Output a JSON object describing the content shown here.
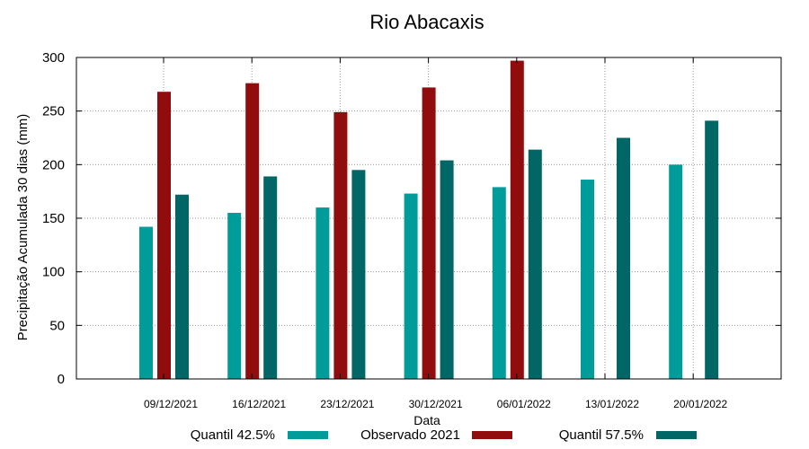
{
  "chart_data": {
    "type": "bar",
    "title": "Rio Abacaxis",
    "xlabel": "Data",
    "ylabel": "Precipitação Acumulada 30 dias (mm)",
    "ylim": [
      0,
      300
    ],
    "yticks": [
      0,
      50,
      100,
      150,
      200,
      250,
      300
    ],
    "grid": true,
    "legend_position": "bottom",
    "categories": [
      "09/12/2021",
      "16/12/2021",
      "23/12/2021",
      "30/12/2021",
      "06/01/2022",
      "13/01/2022",
      "20/01/2022"
    ],
    "series": [
      {
        "name": "Quantil 42.5%",
        "color": "#009c99",
        "values": [
          142,
          155,
          160,
          173,
          179,
          186,
          200
        ]
      },
      {
        "name": "Observado 2021",
        "color": "#910d0d",
        "values": [
          268,
          276,
          249,
          272,
          297,
          null,
          null
        ]
      },
      {
        "name": "Quantil 57.5%",
        "color": "#006666",
        "values": [
          172,
          189,
          195,
          204,
          214,
          225,
          241
        ]
      }
    ]
  }
}
